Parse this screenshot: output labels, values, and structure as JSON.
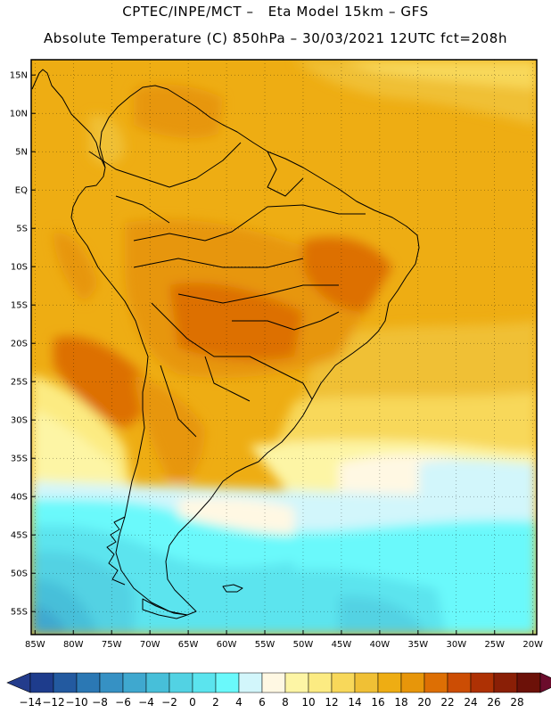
{
  "header": {
    "title_line1": "CPTEC/INPE/MCT –   Eta Model 15km – GFS",
    "title_line2": "Absolute Temperature (C) 850hPa – 30/03/2021 12UTC fct=208h"
  },
  "map": {
    "lat_labels": [
      "15N",
      "10N",
      "5N",
      "EQ",
      "5S",
      "10S",
      "15S",
      "20S",
      "25S",
      "30S",
      "35S",
      "40S",
      "45S",
      "50S",
      "55S"
    ],
    "lat_values": [
      15,
      10,
      5,
      0,
      -5,
      -10,
      -15,
      -20,
      -25,
      -30,
      -35,
      -40,
      -45,
      -50,
      -55
    ],
    "lon_labels": [
      "85W",
      "80W",
      "75W",
      "70W",
      "65W",
      "60W",
      "55W",
      "50W",
      "45W",
      "40W",
      "35W",
      "30W",
      "25W",
      "20W"
    ],
    "lon_values": [
      -85,
      -80,
      -75,
      -70,
      -65,
      -60,
      -55,
      -50,
      -45,
      -40,
      -35,
      -30,
      -25,
      -20
    ],
    "extent": {
      "lon_min": -85.5,
      "lon_max": -19.5,
      "lat_min": -58,
      "lat_max": 17
    }
  },
  "colorbar": {
    "labels": [
      "−14",
      "−12",
      "−10",
      "−8",
      "−6",
      "−4",
      "−2",
      "0",
      "2",
      "4",
      "6",
      "8",
      "10",
      "12",
      "14",
      "16",
      "18",
      "20",
      "22",
      "24",
      "26",
      "28"
    ],
    "colors": [
      "#1e3c8c",
      "#235aa0",
      "#2b78b4",
      "#3691c4",
      "#3fa8cf",
      "#47bfd9",
      "#52d2e3",
      "#5be4ee",
      "#6af9fb",
      "#d2f6fb",
      "#fff8e3",
      "#fdf5a5",
      "#fceb82",
      "#f8d85a",
      "#f0c035",
      "#eead13",
      "#e7960a",
      "#dd6f04",
      "#cc4d04",
      "#ae3104",
      "#8a1f06",
      "#6c1108"
    ],
    "under_color": "#233c8c",
    "over_color": "#6b0c2c"
  }
}
